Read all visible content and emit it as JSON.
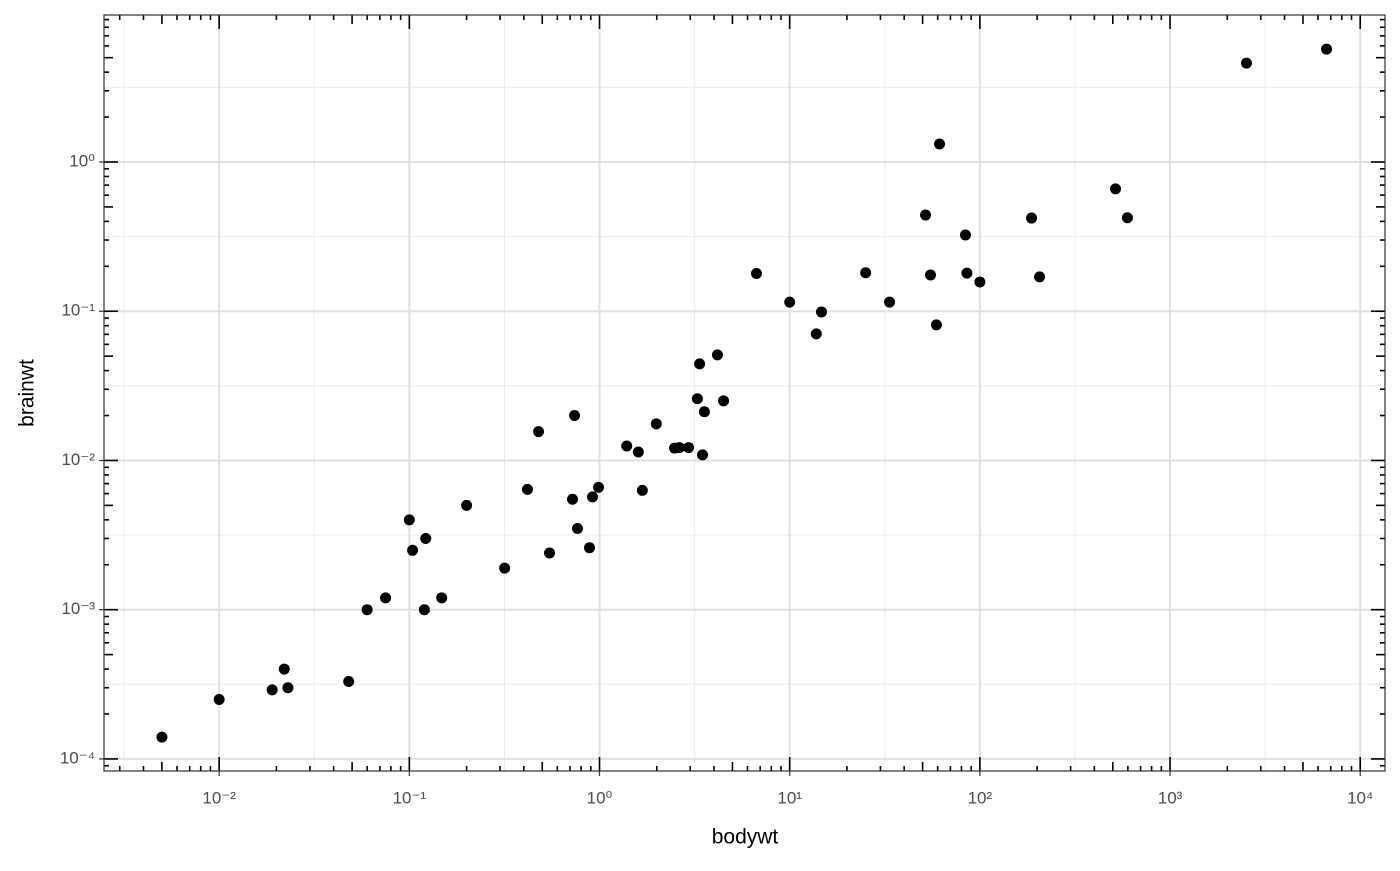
{
  "chart_data": {
    "type": "scatter",
    "x_label": "bodywt",
    "y_label": "brainwt",
    "log_x": true,
    "log_y": true,
    "grid": true,
    "color": "#000000",
    "xlim": [
      0.00248,
      13500
    ],
    "ylim": [
      8.3e-05,
      9.66
    ],
    "xticks": [
      {
        "value": 0.01,
        "label": "10⁻²"
      },
      {
        "value": 0.1,
        "label": "10⁻¹"
      },
      {
        "value": 1,
        "label": "10⁰"
      },
      {
        "value": 10,
        "label": "10¹"
      },
      {
        "value": 100,
        "label": "10²"
      },
      {
        "value": 1000,
        "label": "10³"
      },
      {
        "value": 10000,
        "label": "10⁴"
      }
    ],
    "yticks": [
      {
        "value": 0.0001,
        "label": "10⁻⁴"
      },
      {
        "value": 0.001,
        "label": "10⁻³"
      },
      {
        "value": 0.01,
        "label": "10⁻²"
      },
      {
        "value": 0.1,
        "label": "10⁻¹"
      },
      {
        "value": 1,
        "label": "10⁰"
      }
    ],
    "x": [
      0.005,
      0.01,
      0.019,
      0.022,
      0.023,
      0.048,
      0.06,
      0.075,
      0.1,
      0.104,
      0.122,
      0.12,
      0.148,
      0.2,
      0.317,
      0.418,
      0.478,
      0.546,
      0.721,
      0.739,
      0.766,
      0.886,
      0.919,
      0.988,
      1.39,
      1.6,
      1.68,
      1.99,
      2.48,
      2.63,
      2.94,
      3.27,
      3.36,
      3.48,
      3.56,
      4.17,
      4.49,
      6.69,
      10,
      13.8,
      14.7,
      25.1,
      33.5,
      51.8,
      55,
      59.1,
      61.4,
      84,
      85.5,
      100,
      187,
      206,
      517,
      597,
      2524,
      6653
    ],
    "y": [
      0.00014,
      0.00025,
      0.00029,
      0.0004,
      0.0003,
      0.00033,
      0.001,
      0.0012,
      0.004,
      0.0025,
      0.003,
      0.001,
      0.0012,
      0.005,
      0.0019,
      0.0064,
      0.0156,
      0.0024,
      0.0055,
      0.02,
      0.0035,
      0.0026,
      0.0057,
      0.0066,
      0.0125,
      0.0114,
      0.0063,
      0.0176,
      0.0121,
      0.0122,
      0.0122,
      0.0259,
      0.0444,
      0.0109,
      0.0212,
      0.051,
      0.0251,
      0.179,
      0.115,
      0.0705,
      0.0989,
      0.181,
      0.115,
      0.441,
      0.175,
      0.081,
      1.32,
      0.324,
      0.18,
      0.157,
      0.421,
      0.17,
      0.66,
      0.423,
      4.6,
      5.71
    ]
  }
}
